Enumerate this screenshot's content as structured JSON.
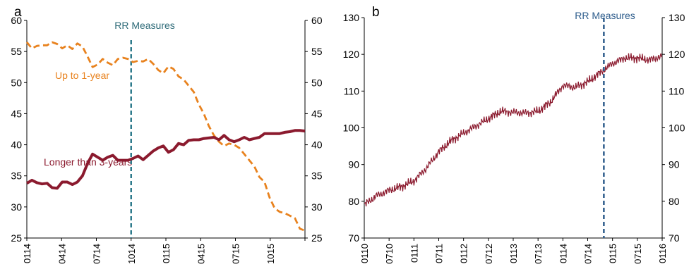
{
  "chart_data": [
    {
      "type": "line",
      "panel_label": "a",
      "annotation": "RR Measures",
      "event_x_label": "1014",
      "x_ticks": [
        "0114",
        "0414",
        "0714",
        "1014",
        "0115",
        "0415",
        "0715",
        "1015"
      ],
      "ylim": [
        25,
        60
      ],
      "y_ticks": [
        25,
        30,
        35,
        40,
        45,
        50,
        55,
        60
      ],
      "y_ticks_right": [
        25,
        30,
        35,
        40,
        45,
        50,
        55,
        60
      ],
      "colors": {
        "up_to_1_year": "#e8821e",
        "longer_than_3_years": "#8b1a2e",
        "event_line": "#2e7b8c"
      },
      "series": [
        {
          "name": "Up to 1-year",
          "style": "dashed",
          "values": [
            56.5,
            55.5,
            55.9,
            56.0,
            56.0,
            56.5,
            56.2,
            55.5,
            56.0,
            55.4,
            56.3,
            55.8,
            54.2,
            52.5,
            52.9,
            53.8,
            53.2,
            52.8,
            53.8,
            54.0,
            53.8,
            53.3,
            53.5,
            53.4,
            53.8,
            53.0,
            52.0,
            51.5,
            52.6,
            52.2,
            51.0,
            50.5,
            49.5,
            48.5,
            46.5,
            45.0,
            43.0,
            41.5,
            40.5,
            39.8,
            40.2,
            40.0,
            39.5,
            38.5,
            37.5,
            36.5,
            34.8,
            34.0,
            31.5,
            29.8,
            29.2,
            29.0,
            28.6,
            28.2,
            26.5,
            26.2
          ]
        },
        {
          "name": "Longer than 3-years",
          "style": "solid",
          "values": [
            33.8,
            34.3,
            33.9,
            33.7,
            33.8,
            33.1,
            33.0,
            34.0,
            34.0,
            33.6,
            34.0,
            35.0,
            37.0,
            38.5,
            38.0,
            37.5,
            38.0,
            38.3,
            37.5,
            37.5,
            37.5,
            37.8,
            38.2,
            37.6,
            38.3,
            39.0,
            39.5,
            39.8,
            38.8,
            39.2,
            40.2,
            40.0,
            40.7,
            40.8,
            40.8,
            41.0,
            41.1,
            41.2,
            40.8,
            41.5,
            40.8,
            40.5,
            40.8,
            41.2,
            40.8,
            41.0,
            41.2,
            41.8,
            41.8,
            41.8,
            41.8,
            42.0,
            42.1,
            42.3,
            42.3,
            42.2
          ]
        }
      ]
    },
    {
      "type": "line",
      "panel_label": "b",
      "annotation": "RR Measures",
      "ylim": [
        70,
        130
      ],
      "y_ticks": [
        70,
        80,
        90,
        100,
        110,
        120,
        130
      ],
      "y_ticks_right": [
        "70",
        "80",
        "90",
        "100",
        "110",
        "120",
        "130"
      ],
      "x_ticks": [
        "0110",
        "0710",
        "0111",
        "0711",
        "0112",
        "0712",
        "0113",
        "0713",
        "0114",
        "0714",
        "0115",
        "0715",
        "0116"
      ],
      "event_index": 9.65,
      "colors": {
        "series": "#8b1a2e",
        "event_line": "#2e5d8c"
      },
      "series": [
        {
          "name": "",
          "x": [
            0,
            0.5,
            1,
            1.5,
            2,
            2.5,
            3,
            3.5,
            4,
            4.5,
            5,
            5.5,
            6,
            6.5,
            7,
            7.5,
            8,
            8.5,
            9,
            9.5,
            10,
            10.5,
            11,
            11.5,
            12
          ],
          "values": [
            79,
            81.5,
            83,
            84,
            85.5,
            89,
            93.5,
            96.5,
            98.5,
            100.5,
            102.5,
            104.5,
            104.2,
            104,
            104.5,
            107,
            111.5,
            111,
            112.5,
            115,
            117.5,
            119,
            119,
            118.5,
            119.5
          ]
        }
      ]
    }
  ]
}
